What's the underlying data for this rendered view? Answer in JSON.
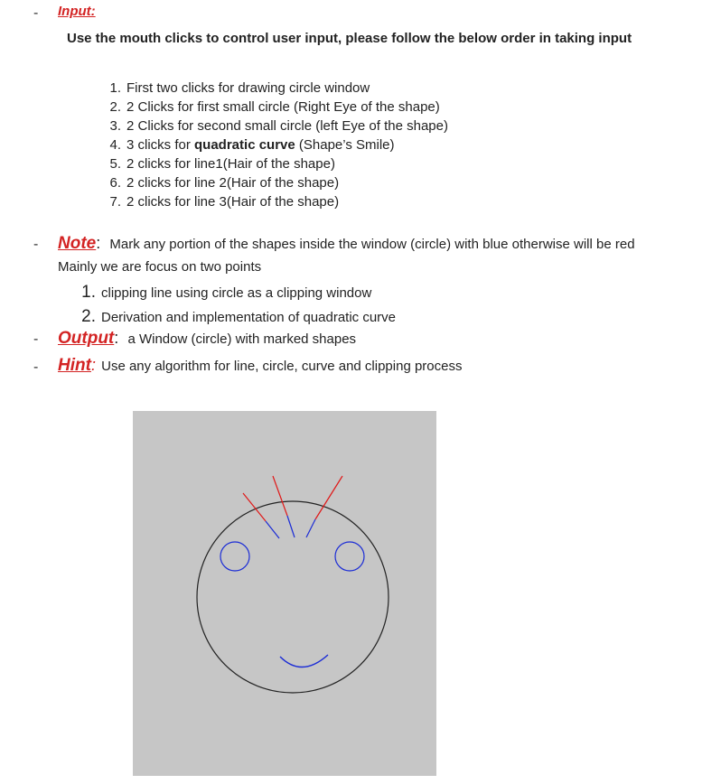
{
  "input": {
    "dash": "-",
    "heading": "Input:",
    "instruction": "Use the mouth clicks to control user input, please follow the below order in taking input",
    "steps": [
      {
        "num": "1.",
        "text": "First two clicks for drawing circle window"
      },
      {
        "num": "2.",
        "text": "2 Clicks for first small circle (Right Eye of the shape)"
      },
      {
        "num": "3.",
        "text": "2 Clicks for second small circle (left Eye of the shape)"
      },
      {
        "num": "4.",
        "pre": "3 clicks for ",
        "bold": "quadratic curve",
        "post": " (Shape’s Smile)"
      },
      {
        "num": "5.",
        "text": "2 clicks for line1(Hair of the shape)"
      },
      {
        "num": "6.",
        "text": "2 clicks for line 2(Hair of the shape)"
      },
      {
        "num": "7.",
        "text": "2 clicks for line 3(Hair of the shape)"
      }
    ]
  },
  "note": {
    "dash": "-",
    "heading": "Note",
    "colon": ":",
    "text": "Mark any portion of the shapes inside the window (circle) with blue otherwise will be red",
    "sub": "Mainly we are focus on two points",
    "points": [
      {
        "num": "1.",
        "text": "clipping line using circle as a clipping window"
      },
      {
        "num": "2.",
        "text": "Derivation and implementation of quadratic curve"
      }
    ]
  },
  "output": {
    "dash": "-",
    "heading": "Output",
    "colon": ":",
    "text": "a Window (circle) with marked shapes"
  },
  "hint": {
    "dash": "-",
    "heading": "Hint",
    "colon": ":",
    "text": "Use any algorithm for line, circle, curve and clipping process"
  },
  "figure": {
    "background": "#c6c6c6",
    "inside_color": "#1a2bd6",
    "outside_color": "#e01818",
    "window_color": "#222222"
  }
}
